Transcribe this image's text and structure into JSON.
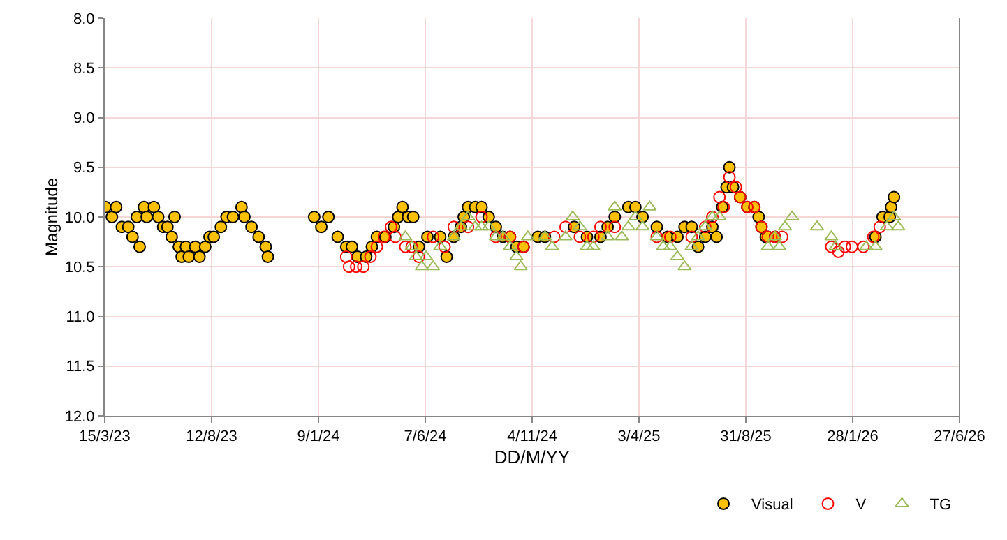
{
  "chart_data": {
    "type": "scatter",
    "xlabel": "DD/M/YY",
    "ylabel": "Magnitude",
    "grid": true,
    "legend": "bottom right",
    "xlim": [
      "2023-03-15",
      "2026-06-27"
    ],
    "xticks": [
      {
        "value": "2023-03-15",
        "label": "15/3/23"
      },
      {
        "value": "2023-08-12",
        "label": "12/8/23"
      },
      {
        "value": "2024-01-09",
        "label": "9/1/24"
      },
      {
        "value": "2024-06-07",
        "label": "7/6/24"
      },
      {
        "value": "2024-11-04",
        "label": "4/11/24"
      },
      {
        "value": "2025-04-03",
        "label": "3/4/25"
      },
      {
        "value": "2025-08-31",
        "label": "31/8/25"
      },
      {
        "value": "2026-01-28",
        "label": "28/1/26"
      },
      {
        "value": "2026-06-27",
        "label": "27/6/26"
      }
    ],
    "ylim": [
      12,
      8
    ],
    "yticks": [
      {
        "value": 8,
        "label": "8.0"
      },
      {
        "value": 8.5,
        "label": "8.5"
      },
      {
        "value": 9,
        "label": "9.0"
      },
      {
        "value": 9.5,
        "label": "9.5"
      },
      {
        "value": 10,
        "label": "10.0"
      },
      {
        "value": 10.5,
        "label": "10.5"
      },
      {
        "value": 11,
        "label": "11.0"
      },
      {
        "value": 11.5,
        "label": "11.5"
      },
      {
        "value": 12,
        "label": "12.0"
      }
    ],
    "series": [
      {
        "name": "Visual",
        "color": "#ffc000",
        "marker": "circle",
        "x": [
          "2023-03-16",
          "2023-03-25",
          "2023-03-31",
          "2023-04-08",
          "2023-04-17",
          "2023-04-23",
          "2023-04-29",
          "2023-05-03",
          "2023-05-09",
          "2023-05-13",
          "2023-05-23",
          "2023-05-29",
          "2023-06-05",
          "2023-06-11",
          "2023-06-17",
          "2023-06-21",
          "2023-06-27",
          "2023-07-01",
          "2023-07-07",
          "2023-07-11",
          "2023-07-20",
          "2023-07-26",
          "2023-08-03",
          "2023-08-09",
          "2023-08-15",
          "2023-08-25",
          "2023-09-02",
          "2023-09-11",
          "2023-09-23",
          "2023-09-27",
          "2023-10-07",
          "2023-10-17",
          "2023-10-27",
          "2023-10-30",
          "2024-01-03",
          "2024-01-13",
          "2024-01-23",
          "2024-02-05",
          "2024-02-17",
          "2024-02-25",
          "2024-03-04",
          "2024-03-16",
          "2024-03-24",
          "2024-03-31",
          "2024-04-12",
          "2024-04-24",
          "2024-04-30",
          "2024-05-06",
          "2024-05-14",
          "2024-05-21",
          "2024-05-29",
          "2024-06-10",
          "2024-06-28",
          "2024-07-07",
          "2024-07-17",
          "2024-07-27",
          "2024-07-31",
          "2024-08-06",
          "2024-08-16",
          "2024-08-25",
          "2024-09-04",
          "2024-09-14",
          "2024-09-24",
          "2024-10-04",
          "2024-10-13",
          "2024-10-23",
          "2024-11-12",
          "2024-11-22",
          "2025-01-02",
          "2025-01-20",
          "2025-02-08",
          "2025-02-18",
          "2025-02-28",
          "2025-03-19",
          "2025-03-29",
          "2025-04-08",
          "2025-04-28",
          "2025-05-13",
          "2025-05-27",
          "2025-06-06",
          "2025-06-16",
          "2025-06-25",
          "2025-07-05",
          "2025-07-15",
          "2025-07-21",
          "2025-07-29",
          "2025-08-04",
          "2025-08-08",
          "2025-08-13",
          "2025-08-23",
          "2025-09-02",
          "2025-09-12",
          "2025-09-18",
          "2025-09-22",
          "2025-09-28",
          "2025-10-01",
          "2025-10-11",
          "2026-03-01",
          "2026-03-11",
          "2026-03-21",
          "2026-03-23",
          "2026-03-27"
        ],
        "values": [
          9.9,
          10.0,
          9.9,
          10.1,
          10.1,
          10.2,
          10.0,
          10.3,
          9.9,
          10.0,
          9.9,
          10.0,
          10.1,
          10.1,
          10.2,
          10.0,
          10.3,
          10.4,
          10.3,
          10.4,
          10.3,
          10.4,
          10.3,
          10.2,
          10.2,
          10.1,
          10.0,
          10.0,
          9.9,
          10.0,
          10.1,
          10.2,
          10.3,
          10.4,
          10.0,
          10.1,
          10.0,
          10.2,
          10.3,
          10.3,
          10.4,
          10.4,
          10.3,
          10.2,
          10.2,
          10.1,
          10.0,
          9.9,
          10.0,
          10.0,
          10.3,
          10.2,
          10.2,
          10.4,
          10.2,
          10.1,
          10.0,
          9.9,
          9.9,
          9.9,
          10.0,
          10.1,
          10.2,
          10.2,
          10.3,
          10.3,
          10.2,
          10.2,
          10.1,
          10.2,
          10.2,
          10.1,
          10.0,
          9.9,
          9.9,
          10.0,
          10.1,
          10.2,
          10.2,
          10.1,
          10.1,
          10.3,
          10.2,
          10.1,
          10.2,
          9.9,
          9.7,
          9.5,
          9.7,
          9.8,
          9.9,
          9.9,
          10.0,
          10.1,
          10.2,
          10.2,
          10.2,
          10.2,
          10.0,
          10.0,
          9.9,
          9.8
        ]
      },
      {
        "name": "V",
        "color": "#ff0000",
        "marker": "circle",
        "x": [
          "2024-02-17",
          "2024-02-21",
          "2024-03-02",
          "2024-03-12",
          "2024-03-22",
          "2024-03-31",
          "2024-04-10",
          "2024-04-20",
          "2024-04-26",
          "2024-05-10",
          "2024-05-19",
          "2024-05-29",
          "2024-06-18",
          "2024-07-04",
          "2024-07-17",
          "2024-08-06",
          "2024-08-25",
          "2024-09-14",
          "2024-10-04",
          "2024-10-23",
          "2024-12-05",
          "2024-12-21",
          "2025-01-10",
          "2025-01-29",
          "2025-02-08",
          "2025-02-28",
          "2025-04-28",
          "2025-05-17",
          "2025-06-16",
          "2025-07-05",
          "2025-07-15",
          "2025-07-25",
          "2025-07-31",
          "2025-08-08",
          "2025-08-17",
          "2025-08-23",
          "2025-09-02",
          "2025-09-12",
          "2025-09-22",
          "2025-10-01",
          "2025-10-11",
          "2025-10-21",
          "2025-12-29",
          "2026-01-08",
          "2026-01-17",
          "2026-01-27",
          "2026-02-12",
          "2026-02-26",
          "2026-03-07"
        ],
        "values": [
          10.4,
          10.5,
          10.5,
          10.5,
          10.4,
          10.3,
          10.2,
          10.1,
          10.2,
          10.3,
          10.3,
          10.4,
          10.2,
          10.3,
          10.1,
          10.1,
          10.0,
          10.2,
          10.2,
          10.3,
          10.2,
          10.1,
          10.2,
          10.2,
          10.1,
          10.1,
          10.2,
          10.2,
          10.2,
          10.1,
          10.0,
          9.8,
          9.9,
          9.6,
          9.7,
          9.8,
          9.9,
          9.9,
          10.1,
          10.2,
          10.2,
          10.2,
          10.3,
          10.35,
          10.3,
          10.3,
          10.3,
          10.2,
          10.1
        ]
      },
      {
        "name": "TG",
        "color": "#9bbb59",
        "marker": "triangle",
        "x": [
          "2024-05-10",
          "2024-05-19",
          "2024-05-25",
          "2024-06-02",
          "2024-06-08",
          "2024-06-18",
          "2024-06-28",
          "2024-07-17",
          "2024-07-27",
          "2024-08-06",
          "2024-08-16",
          "2024-08-25",
          "2024-09-04",
          "2024-09-14",
          "2024-09-24",
          "2024-10-04",
          "2024-10-13",
          "2024-10-19",
          "2024-10-29",
          "2024-11-22",
          "2024-12-02",
          "2024-12-21",
          "2024-12-31",
          "2025-01-10",
          "2025-01-20",
          "2025-01-29",
          "2025-02-18",
          "2025-02-28",
          "2025-03-10",
          "2025-03-19",
          "2025-03-29",
          "2025-04-08",
          "2025-04-18",
          "2025-04-28",
          "2025-05-07",
          "2025-05-17",
          "2025-05-27",
          "2025-06-06",
          "2025-06-16",
          "2025-06-25",
          "2025-07-05",
          "2025-07-15",
          "2025-07-25",
          "2025-10-01",
          "2025-10-11",
          "2025-10-17",
          "2025-10-25",
          "2025-11-04",
          "2025-12-09",
          "2025-12-29",
          "2026-01-04",
          "2026-02-16",
          "2026-03-01",
          "2026-03-17",
          "2026-03-27",
          "2026-04-02"
        ],
        "values": [
          10.2,
          10.3,
          10.4,
          10.5,
          10.4,
          10.5,
          10.3,
          10.2,
          10.1,
          10.0,
          10.1,
          10.1,
          10.1,
          10.2,
          10.2,
          10.3,
          10.4,
          10.5,
          10.2,
          10.2,
          10.3,
          10.2,
          10.0,
          10.1,
          10.3,
          10.3,
          10.2,
          9.9,
          10.2,
          10.1,
          10.0,
          10.1,
          9.9,
          10.2,
          10.3,
          10.3,
          10.4,
          10.5,
          10.3,
          10.2,
          10.1,
          10.0,
          10.0,
          10.3,
          10.2,
          10.3,
          10.1,
          10.0,
          10.1,
          10.2,
          10.3,
          10.3,
          10.3,
          10.1,
          10.0,
          10.1
        ]
      }
    ]
  }
}
